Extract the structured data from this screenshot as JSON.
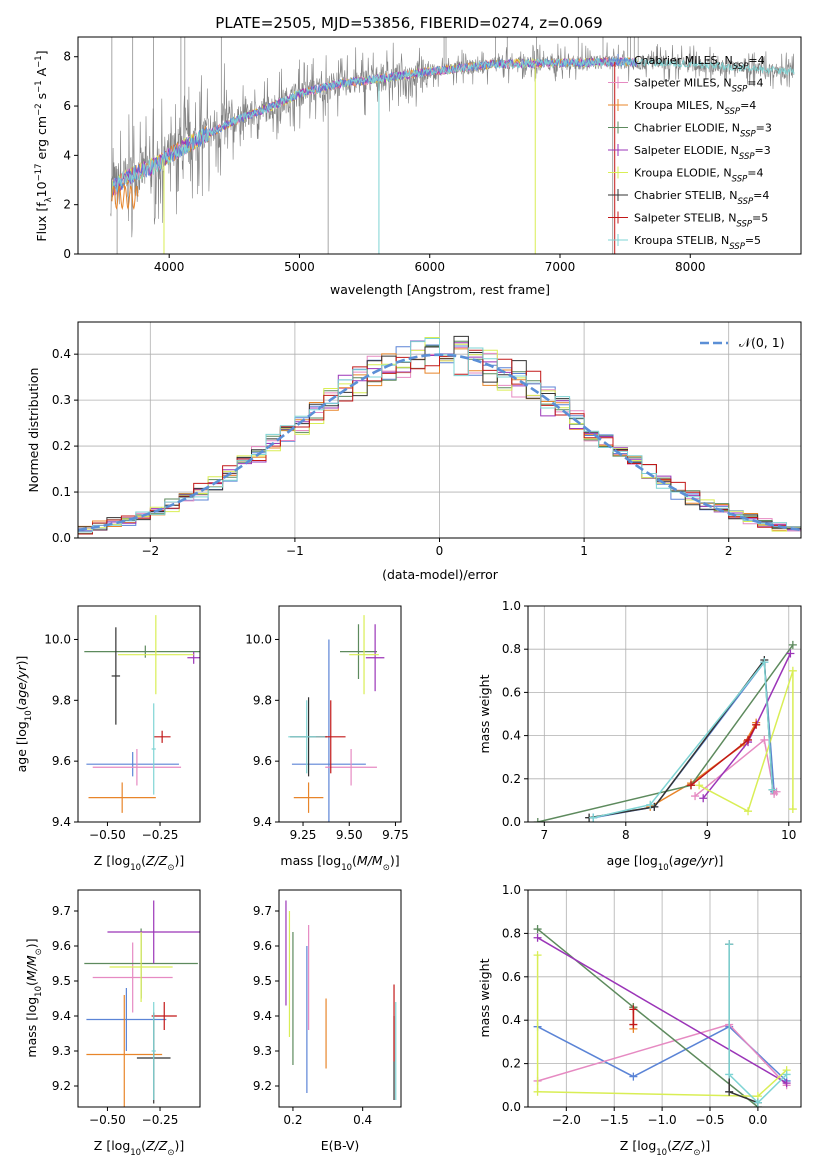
{
  "page_title": "PLATE=2505, MJD=53856, FIBERID=0274, z=0.069",
  "colors": {
    "Chabrier MILES": "#5b84d6",
    "Salpeter MILES": "#e68ac2",
    "Kroupa MILES": "#e8852a",
    "Chabrier ELODIE": "#5d8a5d",
    "Salpeter ELODIE": "#9b35b8",
    "Kroupa ELODIE": "#d9ee55",
    "Chabrier STELIB": "#333333",
    "Salpeter STELIB": "#c21818",
    "Kroupa STELIB": "#7fd4d4",
    "data": "#808080",
    "normal": "#5b8fd6"
  },
  "chart_data": [
    {
      "id": "spectrum",
      "type": "line",
      "xlabel": "wavelength [Angstrom, rest frame]",
      "ylabel": "Flux [f",
      "xlim": [
        3300,
        8850
      ],
      "ylim": [
        0,
        8.8
      ],
      "xticks": [
        4000,
        5000,
        6000,
        7000,
        8000
      ],
      "yticks": [
        0,
        2,
        4,
        6,
        8
      ],
      "legend_placement": "right",
      "legend": [
        {
          "name": "Chabrier MILES, N",
          "nssp": "=4"
        },
        {
          "name": "Salpeter MILES, N",
          "nssp": "=4"
        },
        {
          "name": "Kroupa MILES, N",
          "nssp": "=4"
        },
        {
          "name": "Chabrier ELODIE, N",
          "nssp": "=3"
        },
        {
          "name": "Salpeter ELODIE, N",
          "nssp": "=3"
        },
        {
          "name": "Kroupa ELODIE, N",
          "nssp": "=4"
        },
        {
          "name": "Chabrier STELIB, N",
          "nssp": "=4"
        },
        {
          "name": "Salpeter STELIB, N",
          "nssp": "=5"
        },
        {
          "name": "Kroupa STELIB, N",
          "nssp": "=5"
        }
      ],
      "continuum": [
        [
          3550,
          2.6
        ],
        [
          3650,
          3.0
        ],
        [
          3750,
          3.3
        ],
        [
          3900,
          3.6
        ],
        [
          4000,
          4.0
        ],
        [
          4200,
          4.6
        ],
        [
          4500,
          5.4
        ],
        [
          4800,
          6.0
        ],
        [
          5000,
          6.5
        ],
        [
          5300,
          6.9
        ],
        [
          5600,
          7.1
        ],
        [
          6000,
          7.4
        ],
        [
          6500,
          7.7
        ],
        [
          7000,
          7.75
        ],
        [
          7500,
          7.8
        ],
        [
          8000,
          7.7
        ],
        [
          8500,
          7.5
        ],
        [
          8800,
          7.4
        ]
      ]
    },
    {
      "id": "residuals",
      "type": "histogram",
      "xlabel": "(data-model)/error",
      "ylabel": "Normed distribution",
      "xlim": [
        -2.5,
        2.5
      ],
      "ylim": [
        0,
        0.47
      ],
      "xticks": [
        -2,
        -1,
        0,
        1,
        2
      ],
      "yticks": [
        0.0,
        0.1,
        0.2,
        0.3,
        0.4
      ],
      "grid": true,
      "bin_width": 0.1,
      "legend_label": "𝒩(0, 1)",
      "legend_placement": "top-right"
    },
    {
      "id": "age_vs_z",
      "type": "errorbar",
      "xlabel": "Z [log",
      "ylabel": "age  [log",
      "xlim": [
        -0.64,
        -0.06
      ],
      "ylim": [
        9.4,
        10.11
      ],
      "xticks": [
        -0.5,
        -0.25
      ],
      "yticks": [
        9.4,
        9.6,
        9.8,
        10.0
      ],
      "points": [
        {
          "model": "Chabrier MILES",
          "x": -0.38,
          "y": 9.59,
          "xerr": 0.22,
          "yerr": 0.04
        },
        {
          "model": "Salpeter MILES",
          "x": -0.36,
          "y": 9.58,
          "xerr": 0.21,
          "yerr": 0.06
        },
        {
          "model": "Kroupa MILES",
          "x": -0.43,
          "y": 9.48,
          "xerr": 0.16,
          "yerr": 0.05
        },
        {
          "model": "Chabrier ELODIE",
          "x": -0.32,
          "y": 9.96,
          "xerr": 0.29,
          "yerr": 0.02
        },
        {
          "model": "Salpeter ELODIE",
          "x": -0.09,
          "y": 9.94,
          "xerr": 0.03,
          "yerr": 0.02
        },
        {
          "model": "Kroupa ELODIE",
          "x": -0.27,
          "y": 9.95,
          "xerr": 0.18,
          "yerr": 0.13
        },
        {
          "model": "Chabrier STELIB",
          "x": -0.46,
          "y": 9.88,
          "xerr": 0.02,
          "yerr": 0.16
        },
        {
          "model": "Salpeter STELIB",
          "x": -0.24,
          "y": 9.68,
          "xerr": 0.04,
          "yerr": 0.02
        },
        {
          "model": "Kroupa STELIB",
          "x": -0.28,
          "y": 9.64,
          "xerr": 0.01,
          "yerr": 0.15
        }
      ]
    },
    {
      "id": "age_vs_mass",
      "type": "errorbar",
      "xlabel": "mass [log",
      "ylabel": "",
      "xlim": [
        9.12,
        9.78
      ],
      "ylim": [
        9.4,
        10.11
      ],
      "xticks": [
        9.25,
        9.5,
        9.75
      ],
      "yticks": [
        9.4,
        9.6,
        9.8,
        10.0
      ],
      "points": [
        {
          "model": "Chabrier MILES",
          "x": 9.39,
          "y": 9.59,
          "xerr": 0.2,
          "yerr": 0.41
        },
        {
          "model": "Salpeter MILES",
          "x": 9.51,
          "y": 9.58,
          "xerr": 0.14,
          "yerr": 0.06
        },
        {
          "model": "Kroupa MILES",
          "x": 9.28,
          "y": 9.48,
          "xerr": 0.08,
          "yerr": 0.05
        },
        {
          "model": "Chabrier ELODIE",
          "x": 9.55,
          "y": 9.96,
          "xerr": 0.1,
          "yerr": 0.09
        },
        {
          "model": "Salpeter ELODIE",
          "x": 9.64,
          "y": 9.94,
          "xerr": 0.05,
          "yerr": 0.11
        },
        {
          "model": "Kroupa ELODIE",
          "x": 9.58,
          "y": 9.95,
          "xerr": 0.08,
          "yerr": 0.13
        },
        {
          "model": "Chabrier STELIB",
          "x": 9.28,
          "y": 9.68,
          "xerr": 0.1,
          "yerr": 0.13
        },
        {
          "model": "Salpeter STELIB",
          "x": 9.4,
          "y": 9.68,
          "xerr": 0.08,
          "yerr": 0.12
        },
        {
          "model": "Kroupa STELIB",
          "x": 9.27,
          "y": 9.68,
          "xerr": 0.1,
          "yerr": 0.12
        }
      ]
    },
    {
      "id": "weight_vs_age",
      "type": "line",
      "xlabel": "age  [log",
      "ylabel": "mass weight",
      "xlim": [
        6.8,
        10.15
      ],
      "ylim": [
        0,
        1.0
      ],
      "xticks": [
        7,
        8,
        9,
        10
      ],
      "yticks": [
        0.0,
        0.2,
        0.4,
        0.6,
        0.8,
        1.0
      ],
      "grid": true,
      "series": [
        {
          "model": "Chabrier MILES",
          "x": [
            7.6,
            8.35,
            9.7,
            9.82
          ],
          "y": [
            0.02,
            0.07,
            0.74,
            0.14
          ]
        },
        {
          "model": "Salpeter MILES",
          "x": [
            8.85,
            9.7,
            9.82,
            9.85
          ],
          "y": [
            0.12,
            0.38,
            0.13,
            0.14
          ]
        },
        {
          "model": "Kroupa MILES",
          "x": [
            8.3,
            8.8,
            9.45,
            9.6
          ],
          "y": [
            0.07,
            0.18,
            0.36,
            0.46
          ]
        },
        {
          "model": "Chabrier ELODIE",
          "x": [
            6.92,
            8.8,
            10.05
          ],
          "y": [
            0.0,
            0.17,
            0.82
          ]
        },
        {
          "model": "Salpeter ELODIE",
          "x": [
            8.95,
            9.5,
            10.02
          ],
          "y": [
            0.11,
            0.37,
            0.78
          ]
        },
        {
          "model": "Kroupa ELODIE",
          "x": [
            8.9,
            9.5,
            10.05,
            10.05
          ],
          "y": [
            0.17,
            0.05,
            0.7,
            0.06
          ]
        },
        {
          "model": "Chabrier STELIB",
          "x": [
            7.55,
            8.35,
            9.7,
            9.8
          ],
          "y": [
            0.02,
            0.07,
            0.75,
            0.15
          ]
        },
        {
          "model": "Salpeter STELIB",
          "x": [
            8.8,
            9.5,
            9.6
          ],
          "y": [
            0.17,
            0.38,
            0.45
          ]
        },
        {
          "model": "Kroupa STELIB",
          "x": [
            7.6,
            8.3,
            9.7,
            9.8
          ],
          "y": [
            0.02,
            0.08,
            0.74,
            0.15
          ]
        }
      ]
    },
    {
      "id": "mass_vs_z",
      "type": "errorbar",
      "xlabel": "Z [log",
      "ylabel": "mass [log",
      "xlim": [
        -0.64,
        -0.06
      ],
      "ylim": [
        9.14,
        9.76
      ],
      "xticks": [
        -0.5,
        -0.25
      ],
      "yticks": [
        9.2,
        9.3,
        9.4,
        9.5,
        9.6,
        9.7
      ],
      "points": [
        {
          "model": "Chabrier MILES",
          "x": -0.41,
          "y": 9.39,
          "xerr": 0.19,
          "yerr": 0.09
        },
        {
          "model": "Salpeter MILES",
          "x": -0.38,
          "y": 9.51,
          "xerr": 0.19,
          "yerr": 0.1
        },
        {
          "model": "Kroupa MILES",
          "x": -0.42,
          "y": 9.29,
          "xerr": 0.18,
          "yerr": 0.17
        },
        {
          "model": "Chabrier ELODIE",
          "x": -0.34,
          "y": 9.55,
          "xerr": 0.27,
          "yerr": 0.1
        },
        {
          "model": "Salpeter ELODIE",
          "x": -0.28,
          "y": 9.64,
          "xerr": 0.22,
          "yerr": 0.09
        },
        {
          "model": "Kroupa ELODIE",
          "x": -0.34,
          "y": 9.54,
          "xerr": 0.15,
          "yerr": 0.1
        },
        {
          "model": "Chabrier STELIB",
          "x": -0.28,
          "y": 9.28,
          "xerr": 0.08,
          "yerr": 0.13
        },
        {
          "model": "Salpeter STELIB",
          "x": -0.23,
          "y": 9.4,
          "xerr": 0.06,
          "yerr": 0.04
        },
        {
          "model": "Kroupa STELIB",
          "x": -0.28,
          "y": 9.3,
          "xerr": 0.01,
          "yerr": 0.14
        }
      ]
    },
    {
      "id": "mass_vs_ebv",
      "type": "errorbar",
      "xlabel": "E(B-V)",
      "ylabel": "",
      "xlim": [
        0.16,
        0.51
      ],
      "ylim": [
        9.14,
        9.76
      ],
      "xticks": [
        0.2,
        0.4
      ],
      "yticks": [
        9.2,
        9.3,
        9.4,
        9.5,
        9.6,
        9.7
      ],
      "points": [
        {
          "model": "Chabrier MILES",
          "x": 0.24,
          "y": 9.39,
          "xerr": 0,
          "yerr": 0.21
        },
        {
          "model": "Salpeter MILES",
          "x": 0.245,
          "y": 9.51,
          "xerr": 0,
          "yerr": 0.15
        },
        {
          "model": "Kroupa MILES",
          "x": 0.295,
          "y": 9.35,
          "xerr": 0,
          "yerr": 0.1
        },
        {
          "model": "Chabrier ELODIE",
          "x": 0.2,
          "y": 9.45,
          "xerr": 0,
          "yerr": 0.19
        },
        {
          "model": "Salpeter ELODIE",
          "x": 0.18,
          "y": 9.58,
          "xerr": 0,
          "yerr": 0.15
        },
        {
          "model": "Kroupa ELODIE",
          "x": 0.19,
          "y": 9.52,
          "xerr": 0,
          "yerr": 0.18
        },
        {
          "model": "Chabrier STELIB",
          "x": 0.49,
          "y": 9.28,
          "xerr": 0,
          "yerr": 0.12
        },
        {
          "model": "Salpeter STELIB",
          "x": 0.49,
          "y": 9.38,
          "xerr": 0,
          "yerr": 0.11
        },
        {
          "model": "Kroupa STELIB",
          "x": 0.495,
          "y": 9.3,
          "xerr": 0,
          "yerr": 0.14
        }
      ]
    },
    {
      "id": "weight_vs_z",
      "type": "line",
      "xlabel": "Z [log",
      "ylabel": "mass weight",
      "xlim": [
        -2.4,
        0.45
      ],
      "ylim": [
        0,
        1.0
      ],
      "xticks": [
        -2.0,
        -1.5,
        -1.0,
        -0.5,
        0.0
      ],
      "yticks": [
        0.0,
        0.2,
        0.4,
        0.6,
        0.8,
        1.0
      ],
      "grid": true,
      "series": [
        {
          "model": "Chabrier MILES",
          "x": [
            -2.3,
            -1.3,
            -0.3,
            0.3
          ],
          "y": [
            0.37,
            0.14,
            0.37,
            0.12
          ]
        },
        {
          "model": "Salpeter MILES",
          "x": [
            -2.3,
            -0.3,
            0.3
          ],
          "y": [
            0.12,
            0.38,
            0.1
          ]
        },
        {
          "model": "Kroupa MILES",
          "x": [
            -1.3,
            -1.3
          ],
          "y": [
            0.36,
            0.46
          ]
        },
        {
          "model": "Chabrier ELODIE",
          "x": [
            -2.3,
            -1.3,
            0.0
          ],
          "y": [
            0.82,
            0.46,
            0.0
          ]
        },
        {
          "model": "Salpeter ELODIE",
          "x": [
            -2.3,
            0.3
          ],
          "y": [
            0.78,
            0.11
          ]
        },
        {
          "model": "Kroupa ELODIE",
          "x": [
            -2.3,
            -2.3,
            0.0,
            0.3
          ],
          "y": [
            0.7,
            0.07,
            0.05,
            0.17
          ]
        },
        {
          "model": "Chabrier STELIB",
          "x": [
            -0.3,
            -0.3,
            0.0
          ],
          "y": [
            0.75,
            0.07,
            0.02
          ]
        },
        {
          "model": "Salpeter STELIB",
          "x": [
            -1.3,
            -1.3
          ],
          "y": [
            0.38,
            0.45
          ]
        },
        {
          "model": "Kroupa STELIB",
          "x": [
            -0.3,
            -0.3,
            0.0,
            0.3
          ],
          "y": [
            0.75,
            0.15,
            0.02,
            0.15
          ]
        }
      ]
    }
  ]
}
